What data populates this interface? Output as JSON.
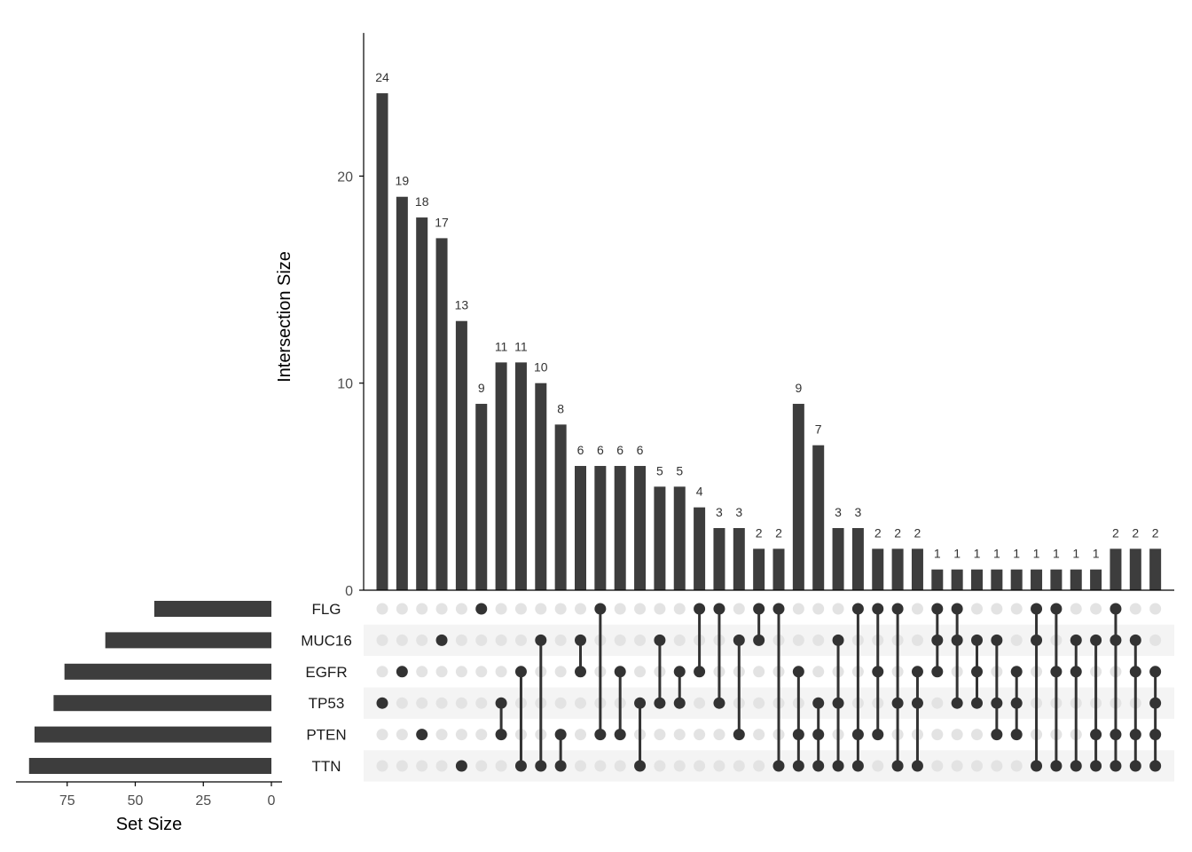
{
  "chart_data": {
    "type": "upset",
    "sets": [
      "FLG",
      "MUC16",
      "EGFR",
      "TP53",
      "PTEN",
      "TTN"
    ],
    "set_sizes": [
      43,
      61,
      76,
      80,
      87,
      89
    ],
    "intersection_axis": {
      "title": "Intersection Size",
      "ylim": [
        0,
        27
      ],
      "ticks": [
        0,
        10,
        20
      ]
    },
    "set_size_axis": {
      "title": "Set Size",
      "xlim": [
        90,
        0
      ],
      "ticks": [
        75,
        50,
        25,
        0
      ]
    },
    "intersections": [
      {
        "value": 24,
        "sets": [
          "TP53"
        ]
      },
      {
        "value": 19,
        "sets": [
          "EGFR"
        ]
      },
      {
        "value": 18,
        "sets": [
          "PTEN"
        ]
      },
      {
        "value": 17,
        "sets": [
          "MUC16"
        ]
      },
      {
        "value": 13,
        "sets": [
          "TTN"
        ]
      },
      {
        "value": 9,
        "sets": [
          "FLG"
        ]
      },
      {
        "value": 11,
        "sets": [
          "TP53",
          "PTEN"
        ]
      },
      {
        "value": 11,
        "sets": [
          "EGFR",
          "TTN"
        ]
      },
      {
        "value": 10,
        "sets": [
          "MUC16",
          "TTN"
        ]
      },
      {
        "value": 8,
        "sets": [
          "PTEN",
          "TTN"
        ]
      },
      {
        "value": 6,
        "sets": [
          "MUC16",
          "EGFR"
        ]
      },
      {
        "value": 6,
        "sets": [
          "FLG",
          "PTEN"
        ]
      },
      {
        "value": 6,
        "sets": [
          "EGFR",
          "PTEN"
        ]
      },
      {
        "value": 6,
        "sets": [
          "TP53",
          "TTN"
        ]
      },
      {
        "value": 5,
        "sets": [
          "MUC16",
          "TP53"
        ]
      },
      {
        "value": 5,
        "sets": [
          "EGFR",
          "TP53"
        ]
      },
      {
        "value": 4,
        "sets": [
          "FLG",
          "EGFR"
        ]
      },
      {
        "value": 3,
        "sets": [
          "FLG",
          "TP53"
        ]
      },
      {
        "value": 3,
        "sets": [
          "MUC16",
          "PTEN"
        ]
      },
      {
        "value": 2,
        "sets": [
          "FLG",
          "MUC16"
        ]
      },
      {
        "value": 2,
        "sets": [
          "FLG",
          "TTN"
        ]
      },
      {
        "value": 9,
        "sets": [
          "EGFR",
          "PTEN",
          "TTN"
        ]
      },
      {
        "value": 7,
        "sets": [
          "TP53",
          "PTEN",
          "TTN"
        ]
      },
      {
        "value": 3,
        "sets": [
          "MUC16",
          "TP53",
          "TTN"
        ]
      },
      {
        "value": 3,
        "sets": [
          "FLG",
          "PTEN",
          "TTN"
        ]
      },
      {
        "value": 2,
        "sets": [
          "FLG",
          "EGFR",
          "PTEN"
        ]
      },
      {
        "value": 2,
        "sets": [
          "FLG",
          "TP53",
          "TTN"
        ]
      },
      {
        "value": 2,
        "sets": [
          "EGFR",
          "TP53",
          "TTN"
        ]
      },
      {
        "value": 1,
        "sets": [
          "FLG",
          "MUC16",
          "EGFR"
        ]
      },
      {
        "value": 1,
        "sets": [
          "FLG",
          "MUC16",
          "TP53"
        ]
      },
      {
        "value": 1,
        "sets": [
          "MUC16",
          "EGFR",
          "TP53"
        ]
      },
      {
        "value": 1,
        "sets": [
          "MUC16",
          "TP53",
          "PTEN"
        ]
      },
      {
        "value": 1,
        "sets": [
          "EGFR",
          "TP53",
          "PTEN"
        ]
      },
      {
        "value": 1,
        "sets": [
          "FLG",
          "MUC16",
          "TTN"
        ]
      },
      {
        "value": 1,
        "sets": [
          "FLG",
          "EGFR",
          "TTN"
        ]
      },
      {
        "value": 1,
        "sets": [
          "MUC16",
          "EGFR",
          "TTN"
        ]
      },
      {
        "value": 1,
        "sets": [
          "MUC16",
          "PTEN",
          "TTN"
        ]
      },
      {
        "value": 2,
        "sets": [
          "FLG",
          "MUC16",
          "PTEN",
          "TTN"
        ]
      },
      {
        "value": 2,
        "sets": [
          "MUC16",
          "EGFR",
          "PTEN",
          "TTN"
        ]
      },
      {
        "value": 2,
        "sets": [
          "EGFR",
          "TP53",
          "PTEN",
          "TTN"
        ]
      }
    ],
    "colors": {
      "bar": "#3d3d3d",
      "dot_active": "#333333",
      "dot_inactive": "#e3e3e3",
      "stripe": "#f4f4f4",
      "axis": "#000000"
    }
  }
}
